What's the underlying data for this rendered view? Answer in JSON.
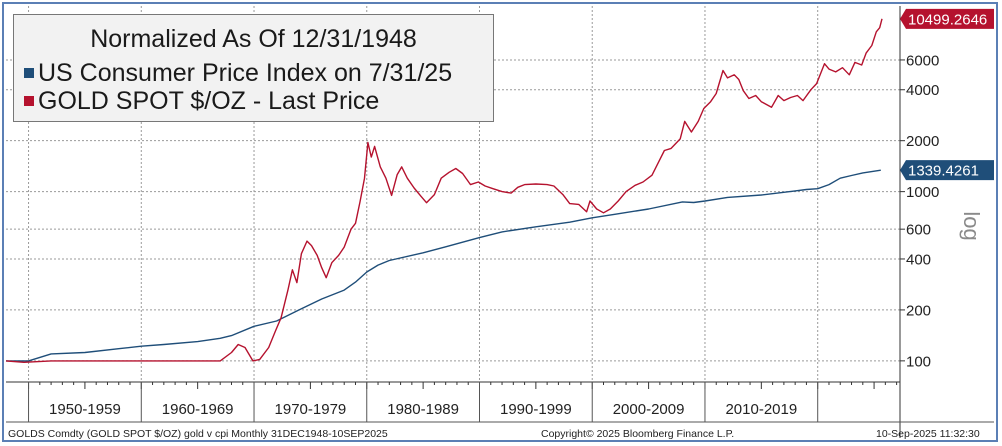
{
  "chart_data": {
    "type": "line",
    "title": "Normalized As Of 12/31/1948",
    "yscale": "log",
    "ylim": [
      75,
      12500
    ],
    "xlim": [
      1948.0,
      2027.3
    ],
    "y_axis_label": "log",
    "y_ticks": [
      100,
      200,
      400,
      600,
      1000,
      2000,
      4000,
      6000
    ],
    "x_period_labels": [
      {
        "label": "1950-1959",
        "start": 1950,
        "end": 1960
      },
      {
        "label": "1960-1969",
        "start": 1960,
        "end": 1970
      },
      {
        "label": "1970-1979",
        "start": 1970,
        "end": 1980
      },
      {
        "label": "1980-1989",
        "start": 1980,
        "end": 1990
      },
      {
        "label": "1990-1999",
        "start": 1990,
        "end": 2000
      },
      {
        "label": "2000-2009",
        "start": 2000,
        "end": 2010
      },
      {
        "label": "2010-2019",
        "start": 2010,
        "end": 2020
      }
    ],
    "series": [
      {
        "name": "US Consumer Price Index on 7/31/25",
        "color": "#1f4e79",
        "last_value_label": "1339.4261",
        "points": [
          [
            1948.0,
            100
          ],
          [
            1950,
            100
          ],
          [
            1952,
            110
          ],
          [
            1955,
            112
          ],
          [
            1958,
            118
          ],
          [
            1960,
            122
          ],
          [
            1962,
            125
          ],
          [
            1965,
            130
          ],
          [
            1967,
            136
          ],
          [
            1968,
            141
          ],
          [
            1970,
            160
          ],
          [
            1972,
            172
          ],
          [
            1974,
            200
          ],
          [
            1976,
            232
          ],
          [
            1978,
            262
          ],
          [
            1979,
            292
          ],
          [
            1980,
            335
          ],
          [
            1981,
            368
          ],
          [
            1982,
            392
          ],
          [
            1985,
            435
          ],
          [
            1987,
            472
          ],
          [
            1990,
            535
          ],
          [
            1992,
            578
          ],
          [
            1995,
            620
          ],
          [
            1998,
            660
          ],
          [
            2000,
            700
          ],
          [
            2002,
            735
          ],
          [
            2005,
            790
          ],
          [
            2008,
            870
          ],
          [
            2009,
            862
          ],
          [
            2010,
            880
          ],
          [
            2012,
            925
          ],
          [
            2015,
            955
          ],
          [
            2018,
            1010
          ],
          [
            2019,
            1030
          ],
          [
            2020,
            1040
          ],
          [
            2021,
            1100
          ],
          [
            2022,
            1200
          ],
          [
            2023,
            1245
          ],
          [
            2024,
            1290
          ],
          [
            2025.6,
            1339.4261
          ]
        ]
      },
      {
        "name": "GOLD SPOT $/OZ - Last Price",
        "color": "#b5122e",
        "last_value_label": "10499.2646",
        "points": [
          [
            1948.0,
            100
          ],
          [
            1949.6,
            98
          ],
          [
            1952,
            100
          ],
          [
            1955,
            100
          ],
          [
            1958,
            100
          ],
          [
            1961,
            100
          ],
          [
            1964,
            100
          ],
          [
            1967,
            100
          ],
          [
            1968.0,
            112
          ],
          [
            1968.6,
            125
          ],
          [
            1969.2,
            120
          ],
          [
            1969.9,
            100
          ],
          [
            1970.5,
            102
          ],
          [
            1971.3,
            120
          ],
          [
            1971.9,
            150
          ],
          [
            1972.4,
            180
          ],
          [
            1973.0,
            260
          ],
          [
            1973.4,
            345
          ],
          [
            1973.8,
            290
          ],
          [
            1974.2,
            430
          ],
          [
            1974.7,
            510
          ],
          [
            1975.1,
            480
          ],
          [
            1975.6,
            420
          ],
          [
            1976.0,
            355
          ],
          [
            1976.4,
            310
          ],
          [
            1976.9,
            380
          ],
          [
            1977.5,
            420
          ],
          [
            1978.0,
            470
          ],
          [
            1978.6,
            600
          ],
          [
            1979.0,
            650
          ],
          [
            1979.4,
            870
          ],
          [
            1979.8,
            1200
          ],
          [
            1980.1,
            1950
          ],
          [
            1980.4,
            1600
          ],
          [
            1980.7,
            1850
          ],
          [
            1981.2,
            1400
          ],
          [
            1981.7,
            1200
          ],
          [
            1982.2,
            950
          ],
          [
            1982.7,
            1260
          ],
          [
            1983.1,
            1400
          ],
          [
            1983.6,
            1200
          ],
          [
            1984.2,
            1050
          ],
          [
            1984.8,
            940
          ],
          [
            1985.3,
            860
          ],
          [
            1986.0,
            960
          ],
          [
            1986.6,
            1200
          ],
          [
            1987.3,
            1300
          ],
          [
            1987.9,
            1370
          ],
          [
            1988.5,
            1280
          ],
          [
            1989.2,
            1100
          ],
          [
            1989.9,
            1140
          ],
          [
            1990.5,
            1080
          ],
          [
            1991.2,
            1040
          ],
          [
            1992.0,
            1000
          ],
          [
            1992.8,
            980
          ],
          [
            1993.4,
            1060
          ],
          [
            1994.0,
            1100
          ],
          [
            1995.0,
            1110
          ],
          [
            1996.0,
            1100
          ],
          [
            1996.6,
            1080
          ],
          [
            1997.4,
            960
          ],
          [
            1998.0,
            850
          ],
          [
            1998.8,
            840
          ],
          [
            1999.5,
            760
          ],
          [
            1999.8,
            880
          ],
          [
            2000.4,
            790
          ],
          [
            2001.0,
            750
          ],
          [
            2001.6,
            790
          ],
          [
            2002.3,
            880
          ],
          [
            2003.0,
            1000
          ],
          [
            2003.8,
            1090
          ],
          [
            2004.5,
            1140
          ],
          [
            2005.3,
            1250
          ],
          [
            2006.0,
            1550
          ],
          [
            2006.4,
            1750
          ],
          [
            2007.0,
            1800
          ],
          [
            2007.8,
            2050
          ],
          [
            2008.2,
            2600
          ],
          [
            2008.8,
            2250
          ],
          [
            2009.4,
            2600
          ],
          [
            2009.9,
            3100
          ],
          [
            2010.5,
            3400
          ],
          [
            2011.0,
            3800
          ],
          [
            2011.6,
            5200
          ],
          [
            2012.0,
            4700
          ],
          [
            2012.6,
            4900
          ],
          [
            2013.0,
            4600
          ],
          [
            2013.4,
            3950
          ],
          [
            2013.9,
            3550
          ],
          [
            2014.5,
            3700
          ],
          [
            2015.0,
            3400
          ],
          [
            2015.9,
            3150
          ],
          [
            2016.5,
            3700
          ],
          [
            2017.0,
            3450
          ],
          [
            2017.6,
            3600
          ],
          [
            2018.2,
            3700
          ],
          [
            2018.7,
            3450
          ],
          [
            2019.4,
            4000
          ],
          [
            2019.9,
            4350
          ],
          [
            2020.6,
            5700
          ],
          [
            2021.0,
            5300
          ],
          [
            2021.6,
            5100
          ],
          [
            2022.2,
            5400
          ],
          [
            2022.8,
            4900
          ],
          [
            2023.3,
            5800
          ],
          [
            2023.9,
            5600
          ],
          [
            2024.3,
            6600
          ],
          [
            2024.8,
            7300
          ],
          [
            2025.2,
            8800
          ],
          [
            2025.5,
            9300
          ],
          [
            2025.7,
            10499.2646
          ]
        ]
      }
    ]
  },
  "footer": {
    "left": "GOLDS Comdty (GOLD SPOT $/OZ) gold v cpi  Monthly 31DEC1948-10SEP2025",
    "center": "Copyright© 2025 Bloomberg Finance L.P.",
    "right": "10-Sep-2025 11:32:30"
  }
}
